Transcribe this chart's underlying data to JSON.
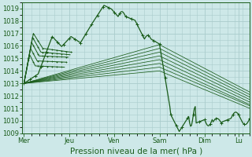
{
  "background_color": "#cde8e8",
  "grid_color": "#aacccc",
  "line_color": "#1a5c1a",
  "xlabel": "Pression niveau de la mer( hPa )",
  "ylim": [
    1009,
    1019.5
  ],
  "yticks": [
    1009,
    1010,
    1011,
    1012,
    1013,
    1014,
    1015,
    1016,
    1017,
    1018,
    1019
  ],
  "day_labels": [
    "Mer",
    "Jeu",
    "Ven",
    "Sam",
    "Dim",
    "Lu"
  ],
  "day_positions": [
    0,
    48,
    96,
    144,
    192,
    228
  ],
  "xlim": [
    -2,
    240
  ],
  "tick_fontsize": 6.0,
  "xlabel_fontsize": 7.5
}
